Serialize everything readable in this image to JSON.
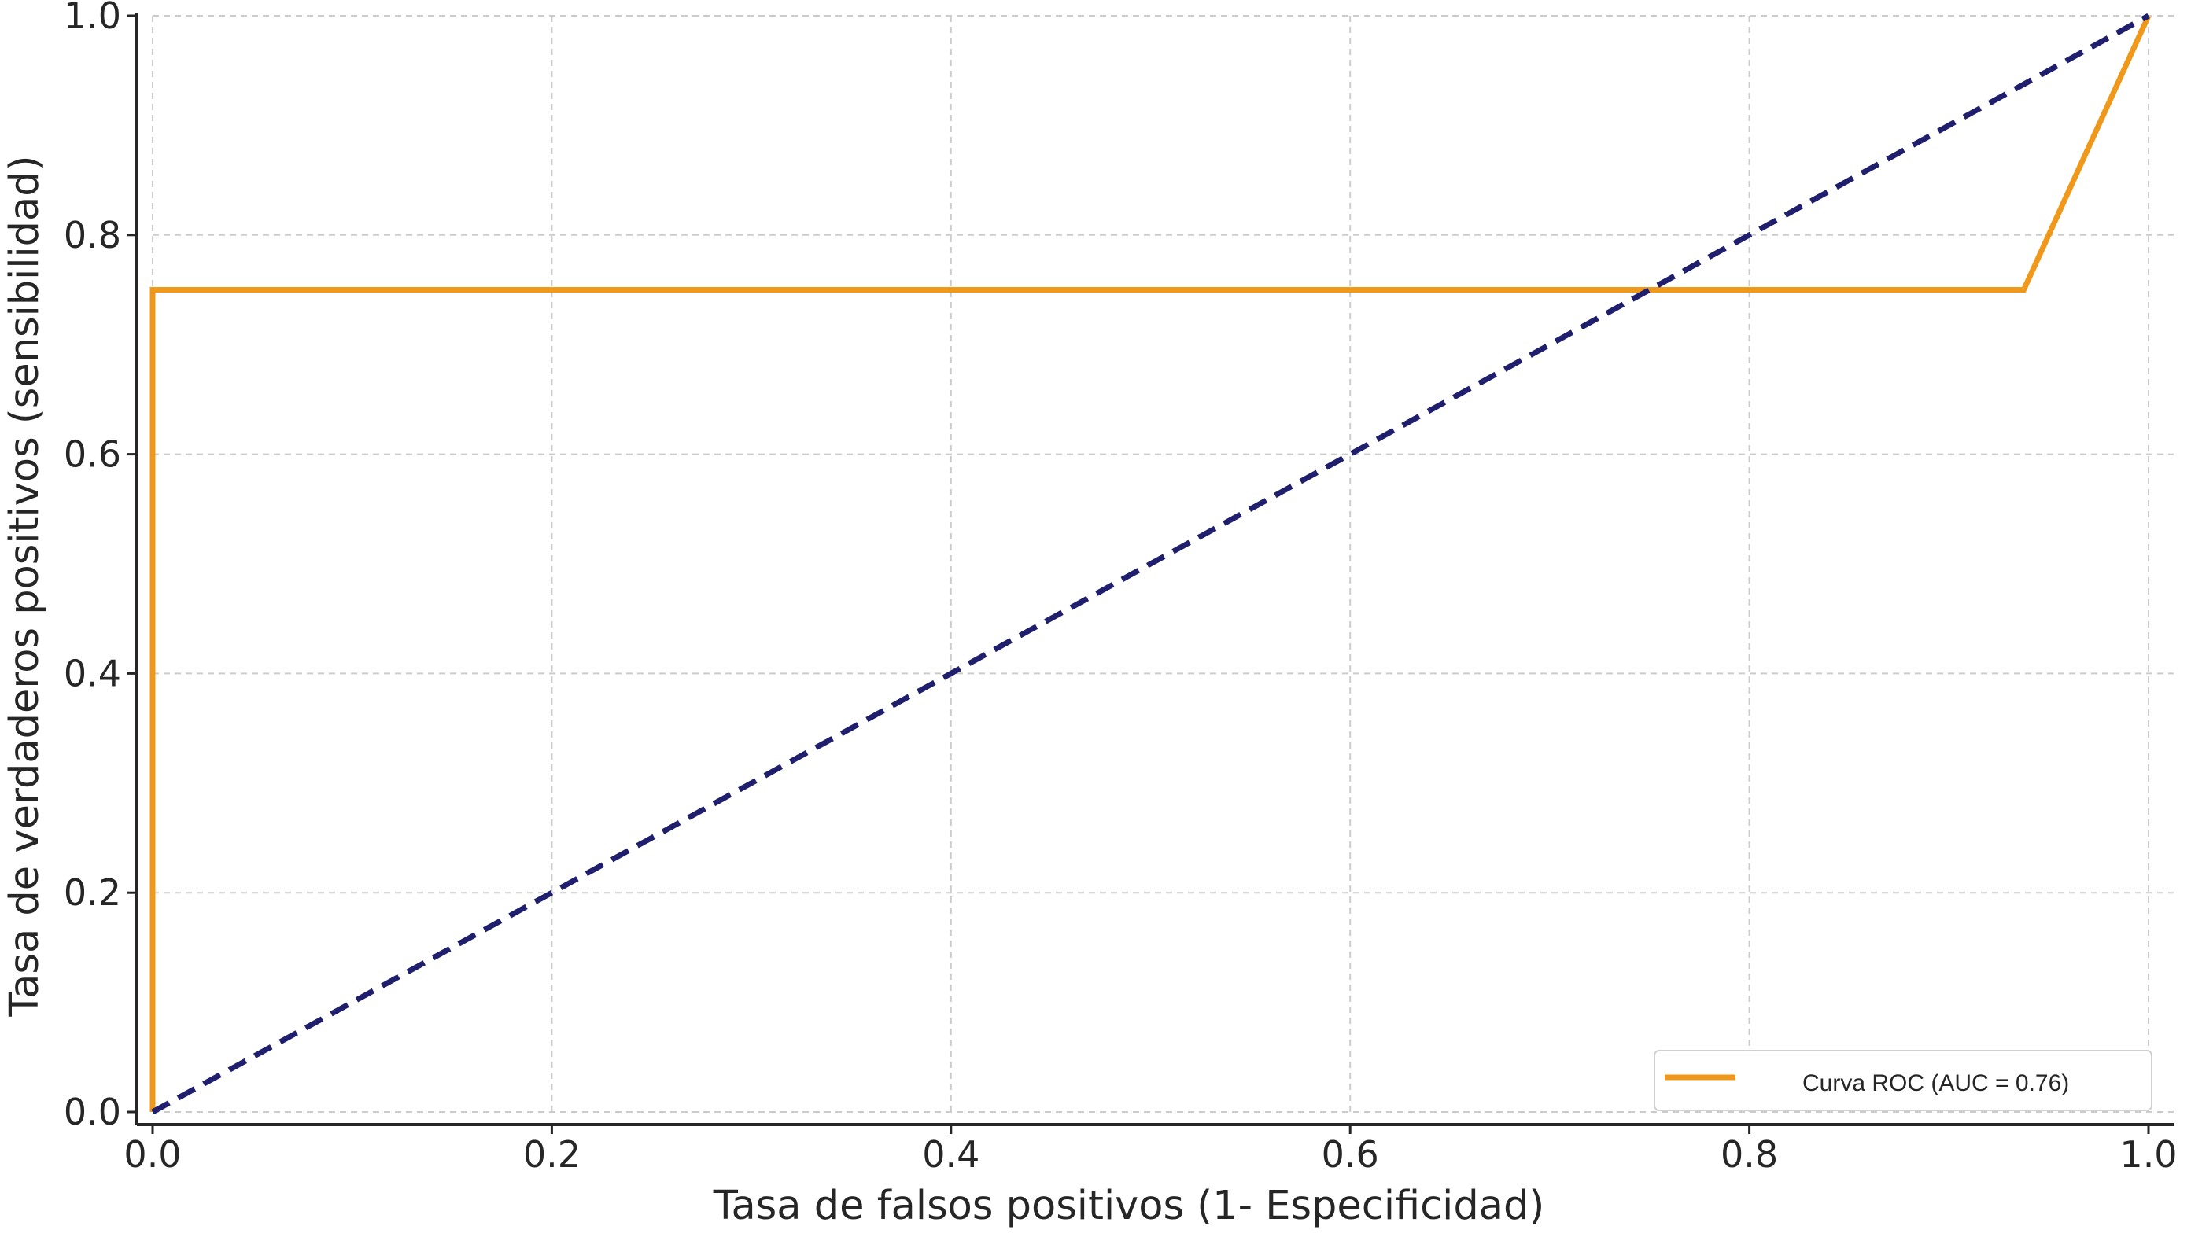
{
  "chart_data": {
    "type": "line",
    "title": "",
    "xlabel": "Tasa de falsos positivos (1- Especificidad)",
    "ylabel": "Tasa de verdaderos positivos (sensibilidad)",
    "xlim": [
      0.0,
      1.0
    ],
    "ylim": [
      0.0,
      1.0
    ],
    "xticks": [
      "0.0",
      "0.2",
      "0.4",
      "0.6",
      "0.8",
      "1.0"
    ],
    "yticks": [
      "0.0",
      "0.2",
      "0.4",
      "0.6",
      "0.8",
      "1.0"
    ],
    "grid": true,
    "legend_position": "bottom-right",
    "series": [
      {
        "name": "Curva ROC (AUC = 0.76)",
        "color": "#f0981a",
        "style": "solid",
        "x": [
          0.0,
          0.0,
          0.9375,
          1.0
        ],
        "y": [
          0.0,
          0.75,
          0.75,
          1.0
        ]
      },
      {
        "color": "#1f1f6e",
        "style": "dashed",
        "x": [
          0.0,
          1.0
        ],
        "y": [
          0.0,
          1.0
        ]
      }
    ]
  }
}
